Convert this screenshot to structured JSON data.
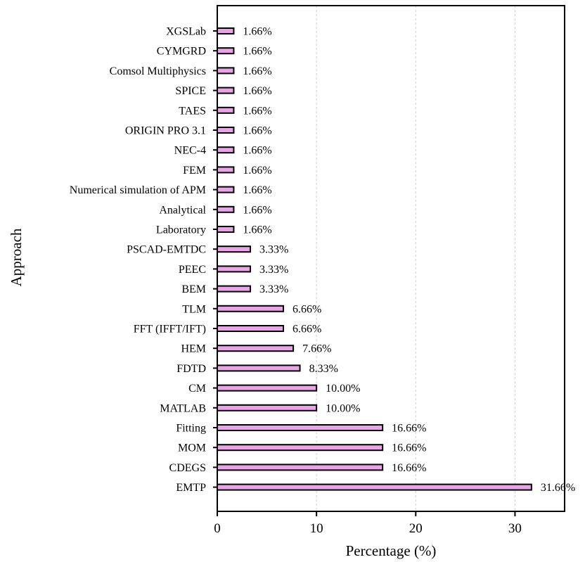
{
  "chart_data": {
    "type": "bar",
    "orientation": "horizontal",
    "xlabel": "Percentage (%)",
    "ylabel": "Approach",
    "xlim": [
      0,
      35
    ],
    "xticks": [
      0,
      10,
      20,
      30
    ],
    "grid": "vertical dashed",
    "bar_color": "#e9a3e6",
    "bar_edge_color": "#000000",
    "categories": [
      "XGSLab",
      "CYMGRD",
      "Comsol Multiphysics",
      "SPICE",
      "TAES",
      "ORIGIN PRO 3.1",
      "NEC-4",
      "FEM",
      "Numerical simulation of APM",
      "Analytical",
      "Laboratory",
      "PSCAD-EMTDC",
      "PEEC",
      "BEM",
      "TLM",
      "FFT (IFFT/IFT)",
      "HEM",
      "FDTD",
      "CM",
      "MATLAB",
      "Fitting",
      "MOM",
      "CDEGS",
      "EMTP"
    ],
    "values": [
      1.66,
      1.66,
      1.66,
      1.66,
      1.66,
      1.66,
      1.66,
      1.66,
      1.66,
      1.66,
      1.66,
      3.33,
      3.33,
      3.33,
      6.66,
      6.66,
      7.66,
      8.33,
      10.0,
      10.0,
      16.66,
      16.66,
      16.66,
      31.66
    ],
    "value_labels": [
      "1.66%",
      "1.66%",
      "1.66%",
      "1.66%",
      "1.66%",
      "1.66%",
      "1.66%",
      "1.66%",
      "1.66%",
      "1.66%",
      "1.66%",
      "3.33%",
      "3.33%",
      "3.33%",
      "6.66%",
      "6.66%",
      "7.66%",
      "8.33%",
      "10.00%",
      "10.00%",
      "16.66%",
      "16.66%",
      "16.66%",
      "31.66%"
    ]
  }
}
